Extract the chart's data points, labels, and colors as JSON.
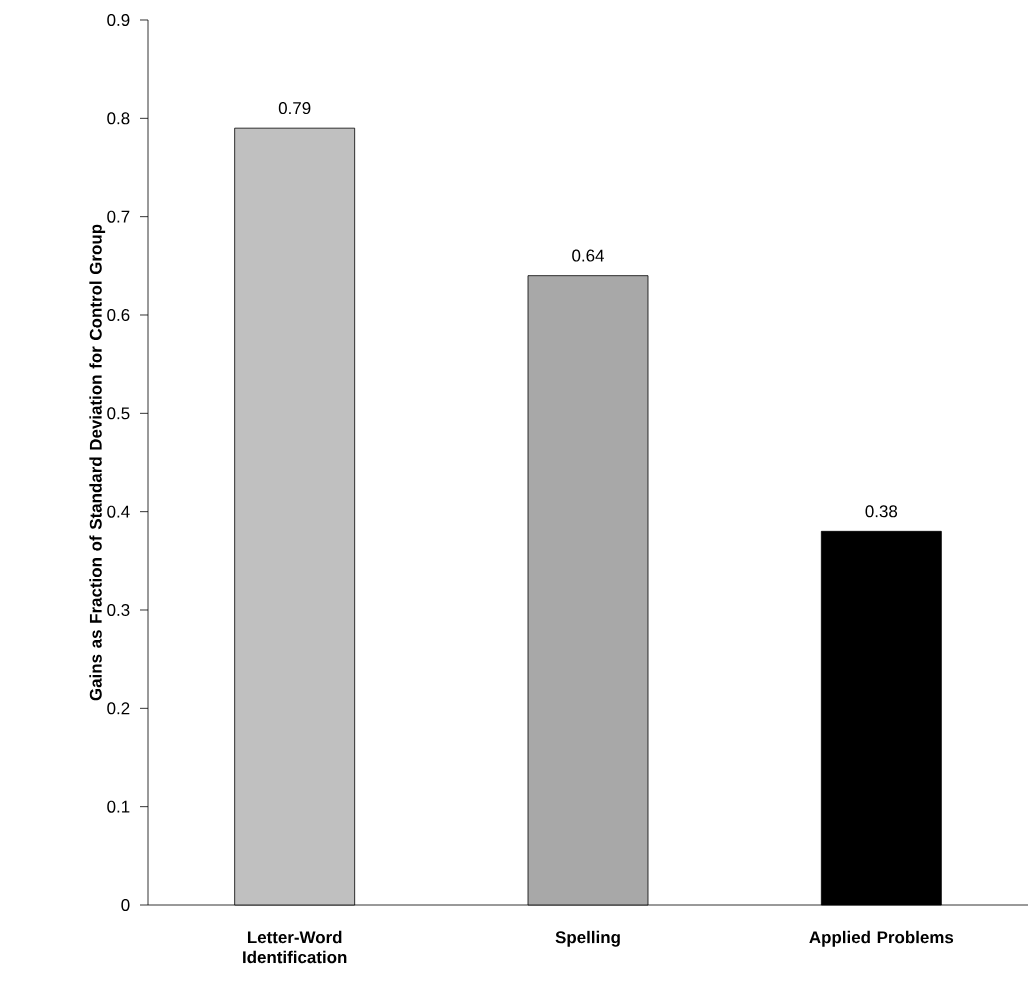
{
  "chart_data": {
    "type": "bar",
    "ylabel": "Gains as Fraction of Standard Deviation for Control Group",
    "categories": [
      "Letter-Word Identification",
      "Spelling",
      "Applied Problems"
    ],
    "values": [
      0.79,
      0.64,
      0.38
    ],
    "colors": [
      "#c0c0c0",
      "#a8a8a8",
      "#000000"
    ],
    "ylim": [
      0,
      0.9
    ],
    "yticks": [
      0,
      0.1,
      0.2,
      0.3,
      0.4,
      0.5,
      0.6,
      0.7,
      0.8,
      0.9
    ],
    "data_labels": true,
    "grid": false
  }
}
